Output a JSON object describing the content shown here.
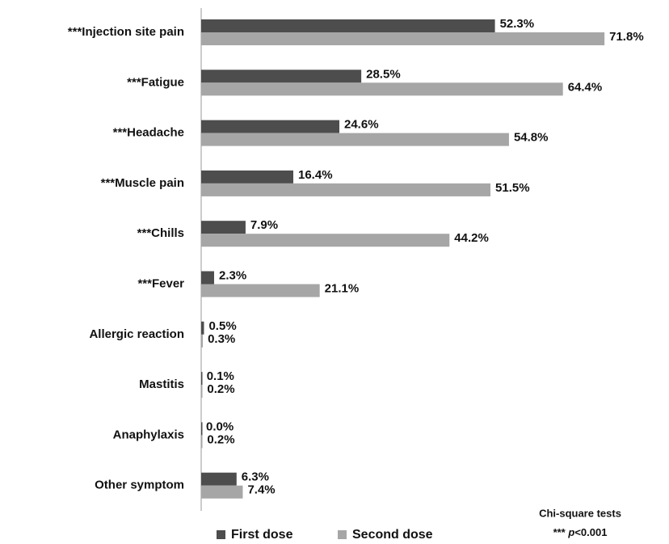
{
  "chart_data": {
    "type": "bar",
    "orientation": "horizontal",
    "categories": [
      "***Injection site pain",
      "***Fatigue",
      "***Headache",
      "***Muscle pain",
      "***Chills",
      "***Fever",
      "Allergic reaction",
      "Mastitis",
      "Anaphylaxis",
      "Other symptom"
    ],
    "series": [
      {
        "name": "First dose",
        "color": "#4d4d4d",
        "values": [
          52.3,
          28.5,
          24.6,
          16.4,
          7.9,
          2.3,
          0.5,
          0.1,
          0.0,
          6.3
        ],
        "value_labels": [
          "52.3%",
          "28.5%",
          "24.6%",
          "16.4%",
          "7.9%",
          "2.3%",
          "0.5%",
          "0.1%",
          "0.0%",
          "6.3%"
        ]
      },
      {
        "name": "Second dose",
        "color": "#a6a6a6",
        "values": [
          71.8,
          64.4,
          54.8,
          51.5,
          44.2,
          21.1,
          0.3,
          0.2,
          0.2,
          7.4
        ],
        "value_labels": [
          "71.8%",
          "64.4%",
          "54.8%",
          "51.5%",
          "44.2%",
          "21.1%",
          "0.3%",
          "0.2%",
          "0.2%",
          "7.4%"
        ]
      }
    ],
    "xlim": [
      0,
      83
    ],
    "legend": "bottom",
    "annotations": {
      "title": "Chi-square tests",
      "note": [
        "*** ",
        "p",
        "<0.001"
      ]
    }
  }
}
